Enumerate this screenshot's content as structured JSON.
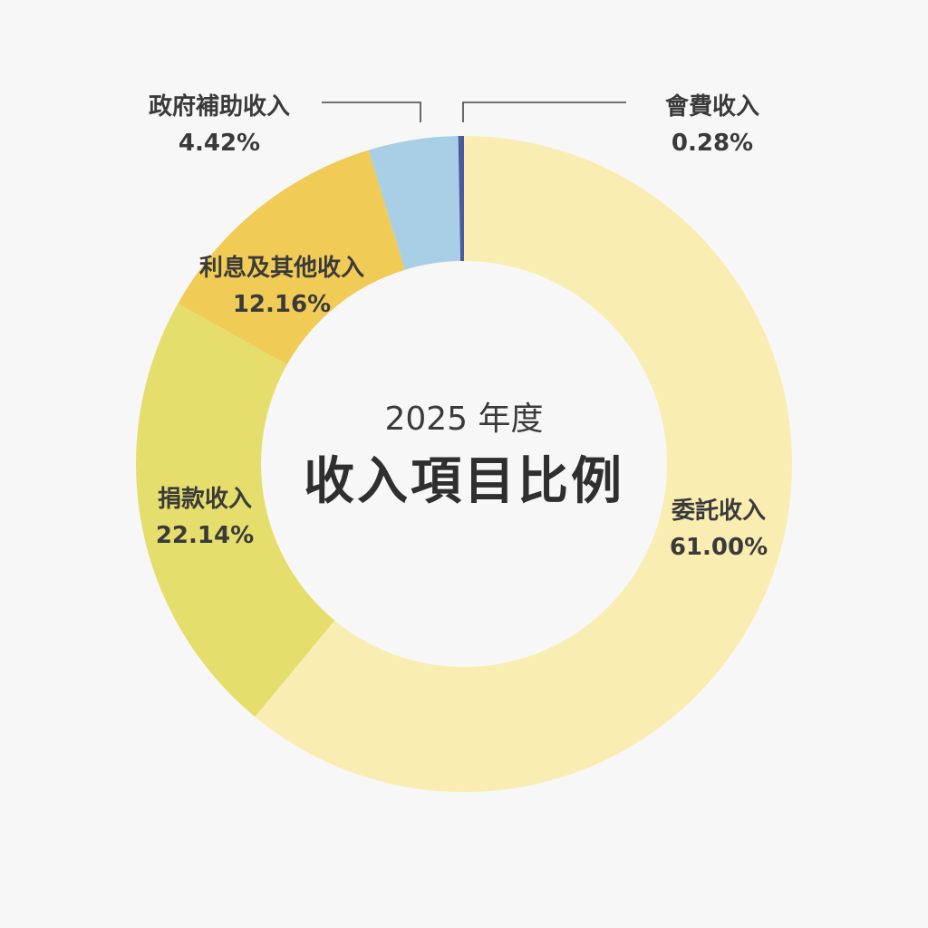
{
  "chart_data": {
    "type": "pie",
    "style": "donut",
    "subtitle": "2025 年度",
    "title": "收入項目比例",
    "unit": "%",
    "slices": [
      {
        "label": "委託收入",
        "value": 61.0,
        "display": "61.00%",
        "color": "#f9edb1"
      },
      {
        "label": "捐款收入",
        "value": 22.14,
        "display": "22.14%",
        "color": "#e5de6c"
      },
      {
        "label": "利息及其他收入",
        "value": 12.16,
        "display": "12.16%",
        "color": "#f0cb55"
      },
      {
        "label": "政府補助收入",
        "value": 4.42,
        "display": "4.42%",
        "color": "#a9cfe6"
      },
      {
        "label": "會費收入",
        "value": 0.28,
        "display": "0.28%",
        "color": "#4a5a9e"
      }
    ]
  }
}
